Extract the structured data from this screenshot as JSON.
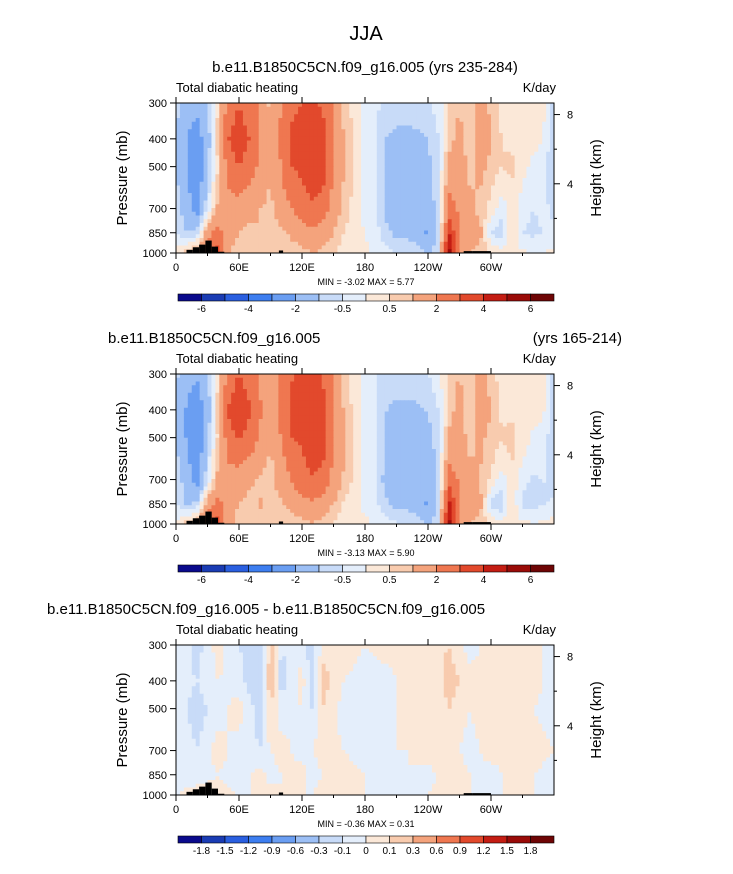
{
  "chart_data": {
    "type": "heatmap",
    "title": "JJA",
    "units_note": "Pressure-longitude cross sections of total diabatic heating",
    "panels": [
      {
        "id": "p1",
        "title_left": "b.e11.B1850C5CN.f09_g16.005 (yrs 235-284)",
        "title_right": "",
        "left_string": "Total diabatic heating",
        "right_string": "K/day",
        "ylabel": "Pressure (mb)",
        "y2label": "Height (km)",
        "xticks": [
          "0",
          "60E",
          "120E",
          "180",
          "120W",
          "60W"
        ],
        "xtick_lon": [
          0,
          60,
          120,
          180,
          240,
          300
        ],
        "xlim": [
          0,
          360
        ],
        "yticks": [
          "300",
          "400",
          "500",
          "700",
          "850",
          "1000"
        ],
        "ytick_p": [
          300,
          400,
          500,
          700,
          850,
          1000
        ],
        "ylim": [
          1000,
          300
        ],
        "y2ticks": [
          "8",
          "4"
        ],
        "y2tick_km": [
          8,
          4
        ],
        "minmax": "MIN = -3.02  MAX =  5.77",
        "cb_levels": [
          -6,
          -5,
          -4,
          -3,
          -2,
          -1,
          -0.5,
          0,
          0.5,
          1,
          2,
          3,
          4,
          5,
          6
        ],
        "cb_labels": [
          "-6",
          "-4",
          "-2",
          "-0.5",
          "0.5",
          "2",
          "4",
          "6"
        ],
        "cb_label_index": [
          0,
          2,
          4,
          6,
          8,
          10,
          12,
          14
        ],
        "scale": 1.0,
        "field": [
          {
            "lon": 0,
            "v": [
              -0.8,
              -0.9,
              -1.0,
              -0.6,
              -0.4,
              0.2
            ]
          },
          {
            "lon": 10,
            "v": [
              -1.5,
              -2.0,
              -2.0,
              -1.5,
              -1.0,
              0.8
            ]
          },
          {
            "lon": 20,
            "v": [
              -1.8,
              -2.5,
              -3.0,
              -2.5,
              -0.8,
              1.2
            ]
          },
          {
            "lon": 30,
            "v": [
              -1.0,
              -1.5,
              -1.2,
              -0.5,
              1.5,
              3.0
            ]
          },
          {
            "lon": 40,
            "v": [
              0.5,
              0.8,
              0.5,
              1.2,
              2.5,
              3.5
            ]
          },
          {
            "lon": 50,
            "v": [
              2.5,
              3.0,
              2.5,
              1.5,
              1.2,
              1.0
            ]
          },
          {
            "lon": 60,
            "v": [
              3.0,
              3.5,
              3.0,
              1.5,
              1.0,
              0.8
            ]
          },
          {
            "lon": 70,
            "v": [
              2.5,
              3.0,
              2.5,
              1.2,
              0.8,
              0.5
            ]
          },
          {
            "lon": 80,
            "v": [
              1.8,
              2.0,
              1.8,
              1.0,
              1.0,
              0.8
            ]
          },
          {
            "lon": 90,
            "v": [
              0.8,
              1.0,
              1.0,
              0.8,
              0.6,
              0.5
            ]
          },
          {
            "lon": 100,
            "v": [
              2.0,
              2.2,
              2.0,
              1.5,
              0.8,
              0.5
            ]
          },
          {
            "lon": 110,
            "v": [
              2.8,
              3.2,
              3.0,
              2.0,
              1.2,
              0.6
            ]
          },
          {
            "lon": 120,
            "v": [
              3.0,
              3.5,
              3.2,
              2.5,
              1.5,
              0.8
            ]
          },
          {
            "lon": 130,
            "v": [
              3.2,
              4.0,
              3.8,
              2.8,
              1.8,
              1.0
            ]
          },
          {
            "lon": 140,
            "v": [
              2.8,
              3.5,
              3.5,
              2.5,
              1.5,
              0.8
            ]
          },
          {
            "lon": 150,
            "v": [
              1.8,
              2.0,
              2.0,
              1.5,
              1.0,
              0.5
            ]
          },
          {
            "lon": 160,
            "v": [
              0.8,
              1.0,
              1.0,
              0.8,
              0.5,
              0.3
            ]
          },
          {
            "lon": 170,
            "v": [
              0.3,
              0.4,
              0.4,
              0.3,
              0.2,
              0.2
            ]
          },
          {
            "lon": 180,
            "v": [
              -0.2,
              -0.3,
              -0.3,
              -0.2,
              0.0,
              0.1
            ]
          },
          {
            "lon": 190,
            "v": [
              -0.4,
              -0.5,
              -0.5,
              -0.4,
              -0.3,
              -0.1
            ]
          },
          {
            "lon": 200,
            "v": [
              -0.6,
              -1.0,
              -1.2,
              -1.2,
              -0.8,
              -0.3
            ]
          },
          {
            "lon": 210,
            "v": [
              -0.7,
              -1.2,
              -1.5,
              -1.5,
              -1.2,
              -0.5
            ]
          },
          {
            "lon": 220,
            "v": [
              -0.7,
              -1.2,
              -1.5,
              -1.5,
              -1.2,
              -0.5
            ]
          },
          {
            "lon": 230,
            "v": [
              -0.6,
              -1.2,
              -1.5,
              -1.5,
              -1.5,
              -0.6
            ]
          },
          {
            "lon": 240,
            "v": [
              -0.6,
              -1.0,
              -1.2,
              -1.5,
              -2.2,
              -1.2
            ]
          },
          {
            "lon": 250,
            "v": [
              -0.3,
              -0.5,
              -0.6,
              -0.7,
              -0.8,
              -0.5
            ]
          },
          {
            "lon": 260,
            "v": [
              0.5,
              0.8,
              1.2,
              2.5,
              4.0,
              5.5
            ]
          },
          {
            "lon": 270,
            "v": [
              1.0,
              1.2,
              1.5,
              1.8,
              2.0,
              1.5
            ]
          },
          {
            "lon": 280,
            "v": [
              0.5,
              0.6,
              0.8,
              1.2,
              1.5,
              1.0
            ]
          },
          {
            "lon": 290,
            "v": [
              1.5,
              1.8,
              1.2,
              0.8,
              1.2,
              0.8
            ]
          },
          {
            "lon": 300,
            "v": [
              0.8,
              1.0,
              0.8,
              0.3,
              -0.6,
              0.5
            ]
          },
          {
            "lon": 310,
            "v": [
              0.3,
              0.5,
              0.5,
              -0.3,
              -0.8,
              0.3
            ]
          },
          {
            "lon": 320,
            "v": [
              0.2,
              0.4,
              0.6,
              0.3,
              0.5,
              0.2
            ]
          },
          {
            "lon": 330,
            "v": [
              0.4,
              0.5,
              0.2,
              -0.3,
              -0.5,
              0.1
            ]
          },
          {
            "lon": 340,
            "v": [
              0.3,
              0.2,
              -0.2,
              -0.5,
              -0.6,
              0.0
            ]
          },
          {
            "lon": 350,
            "v": [
              0.1,
              0.0,
              -0.3,
              -0.4,
              -0.5,
              0.0
            ]
          },
          {
            "lon": 360,
            "v": [
              -0.8,
              -0.9,
              -1.0,
              -0.6,
              -0.4,
              0.2
            ]
          }
        ]
      },
      {
        "id": "p2",
        "title_left": "b.e11.B1850C5CN.f09_g16.005",
        "title_right": "(yrs 165-214)",
        "left_string": "Total diabatic heating",
        "right_string": "K/day",
        "ylabel": "Pressure (mb)",
        "y2label": "Height (km)",
        "xticks": [
          "0",
          "60E",
          "120E",
          "180",
          "120W",
          "60W"
        ],
        "xtick_lon": [
          0,
          60,
          120,
          180,
          240,
          300
        ],
        "xlim": [
          0,
          360
        ],
        "yticks": [
          "300",
          "400",
          "500",
          "700",
          "850",
          "1000"
        ],
        "ytick_p": [
          300,
          400,
          500,
          700,
          850,
          1000
        ],
        "ylim": [
          1000,
          300
        ],
        "y2ticks": [
          "8",
          "4"
        ],
        "y2tick_km": [
          8,
          4
        ],
        "minmax": "MIN = -3.13  MAX =  5.90",
        "cb_levels": [
          -6,
          -5,
          -4,
          -3,
          -2,
          -1,
          -0.5,
          0,
          0.5,
          1,
          2,
          3,
          4,
          5,
          6
        ],
        "cb_labels": [
          "-6",
          "-4",
          "-2",
          "-0.5",
          "0.5",
          "2",
          "4",
          "6"
        ],
        "cb_label_index": [
          0,
          2,
          4,
          6,
          8,
          10,
          12,
          14
        ],
        "scale": 1.02,
        "field": "same-as-p1"
      },
      {
        "id": "p3",
        "title_left": "b.e11.B1850C5CN.f09_g16.005 - b.e11.B1850C5CN.f09_g16.005",
        "title_right": "",
        "left_string": "Total diabatic heating",
        "right_string": "K/day",
        "ylabel": "Pressure (mb)",
        "y2label": "Height (km)",
        "xticks": [
          "0",
          "60E",
          "120E",
          "180",
          "120W",
          "60W"
        ],
        "xtick_lon": [
          0,
          60,
          120,
          180,
          240,
          300
        ],
        "xlim": [
          0,
          360
        ],
        "yticks": [
          "300",
          "400",
          "500",
          "700",
          "850",
          "1000"
        ],
        "ytick_p": [
          300,
          400,
          500,
          700,
          850,
          1000
        ],
        "ylim": [
          1000,
          300
        ],
        "y2ticks": [
          "8",
          "4"
        ],
        "y2tick_km": [
          8,
          4
        ],
        "minmax": "MIN = -0.36  MAX =  0.31",
        "cb_levels": [
          -1.8,
          -1.5,
          -1.2,
          -0.9,
          -0.6,
          -0.3,
          -0.1,
          0,
          0.1,
          0.3,
          0.6,
          0.9,
          1.2,
          1.5,
          1.8
        ],
        "cb_labels": [
          "-1.8",
          "-1.5",
          "-1.2",
          "-0.9",
          "-0.6",
          "-0.3",
          "-0.1",
          "0",
          "0.1",
          "0.3",
          "0.6",
          "0.9",
          "1.2",
          "1.5",
          "1.8"
        ],
        "cb_label_index": [
          0,
          1,
          2,
          3,
          4,
          5,
          6,
          7,
          8,
          9,
          10,
          11,
          12,
          13,
          14
        ],
        "scale": 1.0,
        "field": [
          {
            "lon": 0,
            "v": [
              0.0,
              -0.05,
              -0.05,
              0.0,
              -0.05,
              0.0
            ]
          },
          {
            "lon": 20,
            "v": [
              -0.15,
              -0.1,
              -0.15,
              -0.1,
              -0.05,
              0.05
            ]
          },
          {
            "lon": 40,
            "v": [
              0.05,
              0.0,
              -0.05,
              0.05,
              0.0,
              0.05
            ]
          },
          {
            "lon": 60,
            "v": [
              -0.1,
              -0.05,
              0.05,
              -0.05,
              -0.05,
              0.0
            ]
          },
          {
            "lon": 80,
            "v": [
              -0.2,
              -0.25,
              -0.15,
              -0.1,
              0.05,
              0.0
            ]
          },
          {
            "lon": 90,
            "v": [
              0.15,
              0.2,
              0.1,
              0.0,
              -0.05,
              0.05
            ]
          },
          {
            "lon": 100,
            "v": [
              -0.1,
              -0.15,
              -0.05,
              0.05,
              0.0,
              0.0
            ]
          },
          {
            "lon": 120,
            "v": [
              -0.05,
              0.05,
              0.0,
              -0.05,
              0.05,
              0.0
            ]
          },
          {
            "lon": 130,
            "v": [
              -0.15,
              -0.2,
              -0.1,
              0.0,
              -0.05,
              0.0
            ]
          },
          {
            "lon": 140,
            "v": [
              0.05,
              0.15,
              0.1,
              0.05,
              0.0,
              0.05
            ]
          },
          {
            "lon": 160,
            "v": [
              0.05,
              0.0,
              -0.05,
              0.0,
              0.05,
              0.0
            ]
          },
          {
            "lon": 180,
            "v": [
              0.0,
              -0.05,
              -0.1,
              -0.05,
              0.0,
              0.0
            ]
          },
          {
            "lon": 200,
            "v": [
              0.05,
              -0.05,
              -0.05,
              0.0,
              -0.05,
              0.0
            ]
          },
          {
            "lon": 220,
            "v": [
              0.0,
              0.05,
              0.05,
              0.0,
              0.0,
              0.0
            ]
          },
          {
            "lon": 240,
            "v": [
              0.05,
              0.0,
              0.0,
              0.05,
              -0.05,
              0.0
            ]
          },
          {
            "lon": 260,
            "v": [
              0.1,
              0.15,
              0.1,
              0.05,
              0.1,
              0.05
            ]
          },
          {
            "lon": 280,
            "v": [
              -0.05,
              0.05,
              0.0,
              -0.05,
              0.0,
              0.0
            ]
          },
          {
            "lon": 300,
            "v": [
              0.05,
              0.05,
              0.1,
              0.05,
              -0.05,
              0.0
            ]
          },
          {
            "lon": 320,
            "v": [
              0.05,
              0.1,
              0.05,
              0.0,
              0.05,
              0.0
            ]
          },
          {
            "lon": 340,
            "v": [
              0.0,
              0.05,
              0.0,
              0.05,
              0.0,
              0.0
            ]
          },
          {
            "lon": 360,
            "v": [
              0.0,
              -0.05,
              -0.05,
              0.0,
              -0.05,
              0.0
            ]
          }
        ]
      }
    ],
    "colors": [
      "#0a0a8c",
      "#1a3cb4",
      "#2a5fe0",
      "#3d7ef0",
      "#6a9ef2",
      "#9cbff5",
      "#c8dbf8",
      "#e4eefb",
      "#fbe8d8",
      "#f8cbae",
      "#f4a37c",
      "#ef7750",
      "#e2492c",
      "#c41d13",
      "#9a0b08",
      "#6e0505"
    ]
  }
}
